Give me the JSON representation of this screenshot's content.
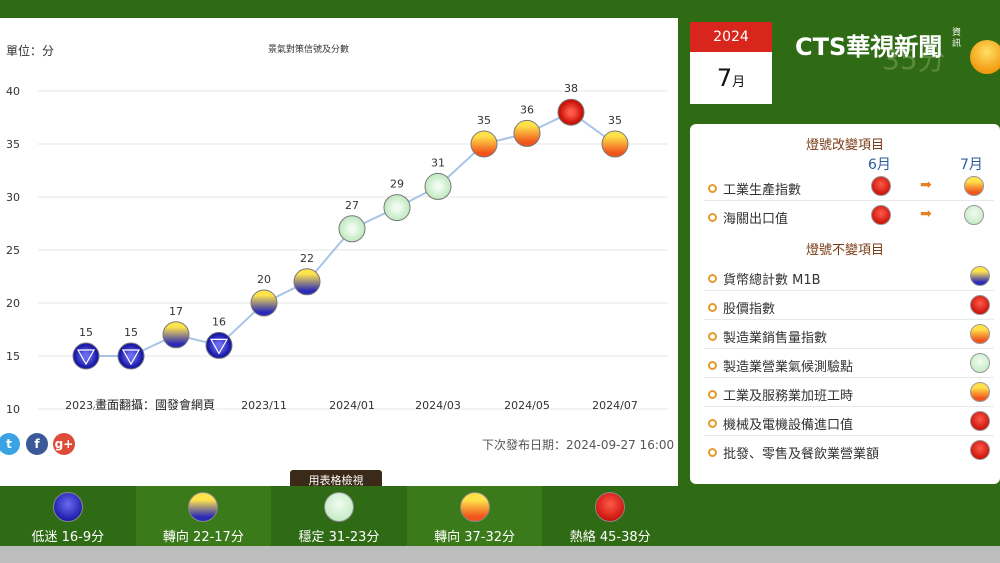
{
  "chart_data": {
    "type": "line",
    "title": "景氣對策信號及分數",
    "unit_label": "單位：分",
    "x_tick_labels": [
      "2023/07",
      "2023/11",
      "2024/01",
      "2024/03",
      "2024/05",
      "2024/07"
    ],
    "y_ticks": [
      "40",
      "35",
      "30",
      "25",
      "20",
      "15",
      "10"
    ],
    "ylim": [
      10,
      40
    ],
    "points": [
      {
        "score": 15,
        "label": "15",
        "signal": "blue"
      },
      {
        "score": 15,
        "label": "15",
        "signal": "blue"
      },
      {
        "score": 17,
        "label": "17",
        "signal": "yellow-blue"
      },
      {
        "score": 16,
        "label": "16",
        "signal": "blue"
      },
      {
        "score": 20,
        "label": "20",
        "signal": "yellow-blue"
      },
      {
        "score": 22,
        "label": "22",
        "signal": "yellow-blue"
      },
      {
        "score": 27,
        "label": "27",
        "signal": "green"
      },
      {
        "score": 29,
        "label": "29",
        "signal": "green"
      },
      {
        "score": 31,
        "label": "31",
        "signal": "green"
      },
      {
        "score": 35,
        "label": "35",
        "signal": "yellow-red"
      },
      {
        "score": 36,
        "label": "36",
        "signal": "yellow-red"
      },
      {
        "score": 38,
        "label": "38",
        "signal": "red"
      },
      {
        "score": 35,
        "label": "35",
        "signal": "yellow-red"
      }
    ],
    "overlay_caption": "畫面翻攝：國發會網頁",
    "grid": true
  },
  "signal_colors": {
    "blue": [
      "#6a6af0",
      "#1a1aa8"
    ],
    "yellow-blue": [
      "#ffe34d",
      "#2a2ab8"
    ],
    "green": [
      "#f2fbf2",
      "#c6ecc6"
    ],
    "yellow-red": [
      "#ffe24a",
      "#f0541c"
    ],
    "red": [
      "#ff5a4a",
      "#c9120a"
    ],
    "line": "#a9c4e6"
  },
  "social": [
    {
      "name": "twitter",
      "glyph": "t",
      "color": "#3aa3e3"
    },
    {
      "name": "facebook",
      "glyph": "f",
      "color": "#3b5998"
    },
    {
      "name": "google-plus",
      "glyph": "g+",
      "color": "#dd4b39"
    }
  ],
  "next_release": "下次發布日期：2024-09-27 16:00",
  "table_button": "用表格檢視",
  "legend": [
    {
      "label": "低迷 16-9分",
      "signal": "blue"
    },
    {
      "label": "轉向 22-17分",
      "signal": "yellow-blue"
    },
    {
      "label": "穩定 31-23分",
      "signal": "green"
    },
    {
      "label": "轉向 37-32分",
      "signal": "yellow-red"
    },
    {
      "label": "熱絡 45-38分",
      "signal": "red"
    }
  ],
  "date_card": {
    "year": "2024",
    "month": "7",
    "month_suffix": "月"
  },
  "current_score": "35分",
  "logo": {
    "main": "CTS華視新聞",
    "sub": "資訊"
  },
  "changed": {
    "title": "燈號改變項目",
    "from_month": "6月",
    "to_month": "7月",
    "items": [
      {
        "label": "工業生產指數",
        "from": "red",
        "to": "yellow-red"
      },
      {
        "label": "海關出口值",
        "from": "red",
        "to": "green"
      }
    ]
  },
  "unchanged": {
    "title": "燈號不變項目",
    "items": [
      {
        "label": "貨幣總計數 M1B",
        "signal": "yellow-blue"
      },
      {
        "label": "股價指數",
        "signal": "red"
      },
      {
        "label": "製造業銷售量指數",
        "signal": "yellow-red"
      },
      {
        "label": "製造業營業氣候測驗點",
        "signal": "green"
      },
      {
        "label": "工業及服務業加班工時",
        "signal": "yellow-red"
      },
      {
        "label": "機械及電機設備進口值",
        "signal": "red"
      },
      {
        "label": "批發、零售及餐飲業營業額",
        "signal": "red"
      }
    ]
  }
}
